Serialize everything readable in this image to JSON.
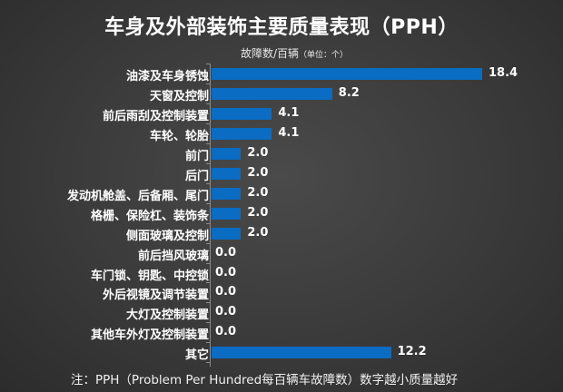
{
  "title": "车身及外部装饰主要质量表现（PPH）",
  "unit_main": "故障数/百辆",
  "unit_sub": "（单位：个）",
  "note": "注：PPH（Problem Per Hundred每百辆车故障数）数字越小质量越好",
  "colors": {
    "bar": "#0a6cc2",
    "background": "#3a3a3a",
    "text": "#ffffff"
  },
  "chart_data": {
    "type": "bar",
    "orientation": "horizontal",
    "title": "车身及外部装饰主要质量表现（PPH）",
    "xlabel": "故障数/百辆（单位：个）",
    "ylabel": "",
    "categories": [
      "油漆及车身锈蚀",
      "天窗及控制",
      "前后雨刮及控制装置",
      "车轮、轮胎",
      "前门",
      "后门",
      "发动机舱盖、后备厢、尾门",
      "格栅、保险杠、装饰条",
      "侧面玻璃及控制",
      "前后挡风玻璃",
      "车门锁、钥匙、中控锁",
      "外后视镜及调节装置",
      "大灯及控制装置",
      "其他车外灯及控制装置",
      "其它"
    ],
    "values": [
      18.4,
      8.2,
      4.1,
      4.1,
      2.0,
      2.0,
      2.0,
      2.0,
      2.0,
      0.0,
      0.0,
      0.0,
      0.0,
      0.0,
      12.2
    ],
    "value_labels": [
      "18.4",
      "8.2",
      "4.1",
      "4.1",
      "2.0",
      "2.0",
      "2.0",
      "2.0",
      "2.0",
      "0.0",
      "0.0",
      "0.0",
      "0.0",
      "0.0",
      "12.2"
    ],
    "xlim": [
      0,
      18.4
    ],
    "grid": false,
    "legend": "none",
    "data_labels": true
  }
}
